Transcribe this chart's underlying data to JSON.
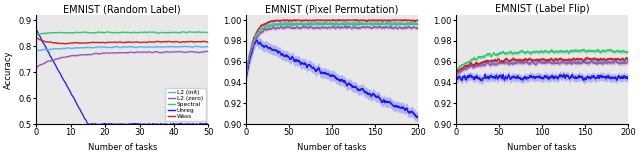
{
  "title1": "EMNIST (Random Label)",
  "title2": "EMNIST (Pixel Permutation)",
  "title3": "EMNIST (Label Flip)",
  "xlabel": "Number of tasks",
  "ylabel": "Accuracy",
  "legend_labels": [
    "L2 (init)",
    "L2 (zero)",
    "Spectral",
    "Unreg",
    "Wass"
  ],
  "colors": {
    "l2_init": "#56b4e9",
    "l2_zero": "#9b59b6",
    "spectral": "#2ecc71",
    "unreg": "#1a1aff",
    "wass": "#cc2222"
  },
  "plot1": {
    "xlim": [
      0,
      50
    ],
    "ylim": [
      0.5,
      0.92
    ],
    "yticks": [
      0.5,
      0.6,
      0.7,
      0.8,
      0.9
    ]
  },
  "plot2": {
    "xlim": [
      0,
      200
    ],
    "ylim": [
      0.9,
      1.005
    ],
    "yticks": [
      0.9,
      0.92,
      0.94,
      0.96,
      0.98,
      1.0
    ]
  },
  "plot3": {
    "xlim": [
      0,
      200
    ],
    "ylim": [
      0.9,
      1.005
    ],
    "yticks": [
      0.9,
      0.92,
      0.94,
      0.96,
      0.98,
      1.0
    ]
  },
  "bg_color": "#e8e8e8"
}
